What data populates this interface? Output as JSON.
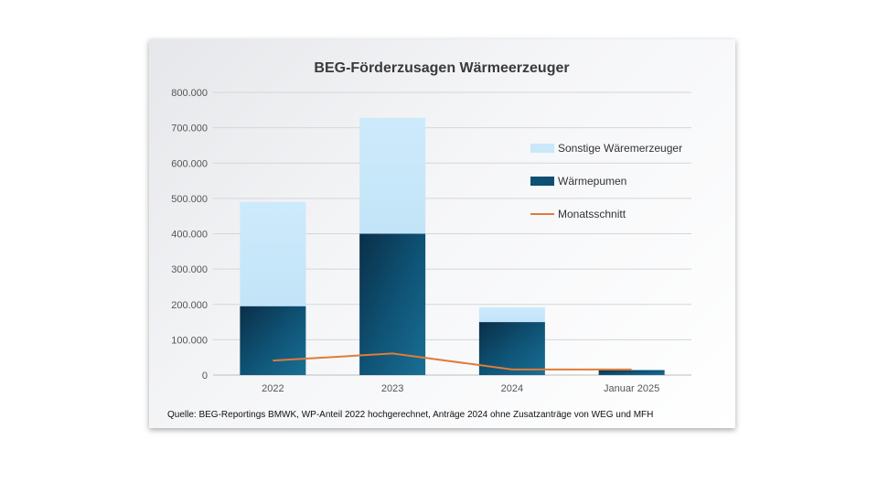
{
  "chart_data": {
    "type": "bar",
    "title": "BEG-Förderzusagen Wärmeerzeuger",
    "categories": [
      "2022",
      "2023",
      "2024",
      "Januar 2025"
    ],
    "ylim": [
      0,
      800000
    ],
    "yticks": [
      "0",
      "100.000",
      "200.000",
      "300.000",
      "400.000",
      "500.000",
      "600.000",
      "700.000",
      "800.000"
    ],
    "yticks_values": [
      0,
      100000,
      200000,
      300000,
      400000,
      500000,
      600000,
      700000,
      800000
    ],
    "series": [
      {
        "name": "Wärmepumen",
        "kind": "bar",
        "stack": "base",
        "color": "#0d4a6b",
        "values": [
          195000,
          400000,
          150000,
          14000
        ]
      },
      {
        "name": "Sonstige Wäremerzeuger",
        "kind": "bar",
        "stack": "top",
        "color": "#c9e8fa",
        "values": [
          295000,
          328000,
          42000,
          2000
        ]
      },
      {
        "name": "Monatsschnitt",
        "kind": "line",
        "color": "#e07b39",
        "values": [
          41000,
          61000,
          16000,
          16000
        ]
      }
    ],
    "grid": true,
    "legend_position": "right"
  },
  "source_note": "Quelle: BEG-Reportings BMWK, WP-Anteil 2022 hochgerechnet, Anträge 2024 ohne Zusatzanträge von WEG und MFH"
}
